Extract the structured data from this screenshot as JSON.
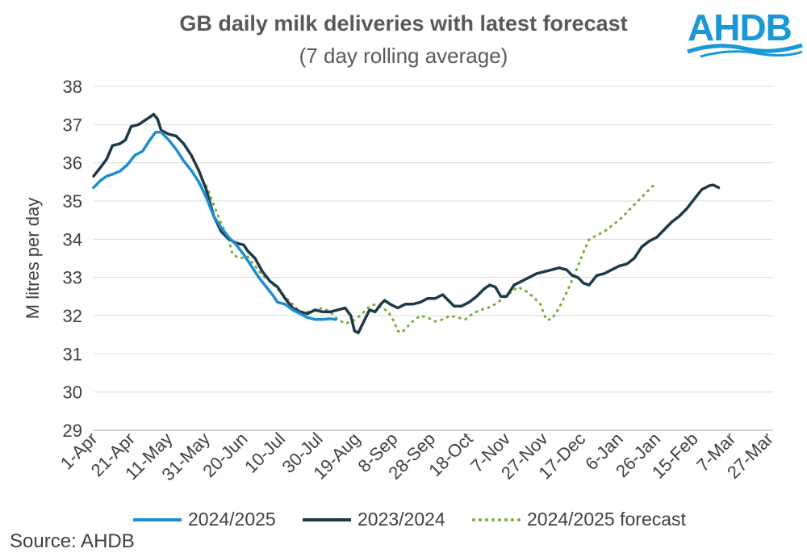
{
  "header": {
    "title": "GB daily milk deliveries with latest forecast",
    "subtitle": "(7 day rolling average)"
  },
  "logo": {
    "text": "AHDB",
    "color": "#1a97d5"
  },
  "footer": {
    "source": "Source: AHDB"
  },
  "chart_data": {
    "type": "line",
    "ylabel": "M litres per day",
    "xlabel": "",
    "ylim": [
      29,
      38
    ],
    "yticks": [
      29,
      30,
      31,
      32,
      33,
      34,
      35,
      36,
      37,
      38
    ],
    "xlim": [
      0,
      362
    ],
    "xticks": [
      {
        "day": 0,
        "label": "1-Apr"
      },
      {
        "day": 20,
        "label": "21-Apr"
      },
      {
        "day": 40,
        "label": "11-May"
      },
      {
        "day": 60,
        "label": "31-May"
      },
      {
        "day": 80,
        "label": "20-Jun"
      },
      {
        "day": 100,
        "label": "10-Jul"
      },
      {
        "day": 120,
        "label": "30-Jul"
      },
      {
        "day": 140,
        "label": "19-Aug"
      },
      {
        "day": 160,
        "label": "8-Sep"
      },
      {
        "day": 180,
        "label": "28-Sep"
      },
      {
        "day": 200,
        "label": "18-Oct"
      },
      {
        "day": 220,
        "label": "7-Nov"
      },
      {
        "day": 240,
        "label": "27-Nov"
      },
      {
        "day": 260,
        "label": "17-Dec"
      },
      {
        "day": 280,
        "label": "6-Jan"
      },
      {
        "day": 300,
        "label": "26-Jan"
      },
      {
        "day": 320,
        "label": "15-Feb"
      },
      {
        "day": 340,
        "label": "7-Mar"
      },
      {
        "day": 360,
        "label": "27-Mar"
      }
    ],
    "grid": "horizontal",
    "legend_position": "bottom",
    "series": [
      {
        "name": "2024/2025",
        "color": "#1b8fd0",
        "style": "solid",
        "points": [
          [
            0,
            35.35
          ],
          [
            4,
            35.55
          ],
          [
            7,
            35.65
          ],
          [
            10,
            35.7
          ],
          [
            14,
            35.78
          ],
          [
            18,
            35.95
          ],
          [
            22,
            36.2
          ],
          [
            26,
            36.3
          ],
          [
            30,
            36.6
          ],
          [
            33,
            36.8
          ],
          [
            36,
            36.8
          ],
          [
            40,
            36.6
          ],
          [
            44,
            36.35
          ],
          [
            48,
            36.05
          ],
          [
            52,
            35.8
          ],
          [
            56,
            35.5
          ],
          [
            60,
            35.1
          ],
          [
            64,
            34.6
          ],
          [
            68,
            34.3
          ],
          [
            72,
            34.05
          ],
          [
            76,
            33.85
          ],
          [
            80,
            33.6
          ],
          [
            84,
            33.3
          ],
          [
            88,
            33.0
          ],
          [
            92,
            32.75
          ],
          [
            96,
            32.5
          ],
          [
            98,
            32.35
          ],
          [
            102,
            32.3
          ],
          [
            106,
            32.15
          ],
          [
            110,
            32.05
          ],
          [
            114,
            31.95
          ],
          [
            118,
            31.9
          ],
          [
            122,
            31.9
          ],
          [
            126,
            31.92
          ],
          [
            129,
            31.9
          ]
        ]
      },
      {
        "name": "2023/2024",
        "color": "#1d3a48",
        "style": "solid",
        "points": [
          [
            0,
            35.65
          ],
          [
            4,
            35.9
          ],
          [
            7,
            36.1
          ],
          [
            10,
            36.45
          ],
          [
            14,
            36.5
          ],
          [
            17,
            36.6
          ],
          [
            20,
            36.95
          ],
          [
            24,
            37.0
          ],
          [
            27,
            37.1
          ],
          [
            30,
            37.2
          ],
          [
            32,
            37.27
          ],
          [
            34,
            37.15
          ],
          [
            36,
            36.85
          ],
          [
            40,
            36.75
          ],
          [
            44,
            36.7
          ],
          [
            48,
            36.5
          ],
          [
            52,
            36.2
          ],
          [
            56,
            35.8
          ],
          [
            60,
            35.3
          ],
          [
            64,
            34.6
          ],
          [
            68,
            34.2
          ],
          [
            72,
            34.0
          ],
          [
            76,
            33.9
          ],
          [
            80,
            33.85
          ],
          [
            82,
            33.7
          ],
          [
            86,
            33.5
          ],
          [
            90,
            33.15
          ],
          [
            94,
            32.9
          ],
          [
            98,
            32.75
          ],
          [
            102,
            32.45
          ],
          [
            106,
            32.2
          ],
          [
            110,
            32.1
          ],
          [
            114,
            32.05
          ],
          [
            118,
            32.15
          ],
          [
            122,
            32.1
          ],
          [
            126,
            32.1
          ],
          [
            130,
            32.15
          ],
          [
            134,
            32.2
          ],
          [
            137,
            32.0
          ],
          [
            139,
            31.6
          ],
          [
            141,
            31.55
          ],
          [
            144,
            31.85
          ],
          [
            147,
            32.15
          ],
          [
            150,
            32.1
          ],
          [
            153,
            32.3
          ],
          [
            155,
            32.4
          ],
          [
            158,
            32.3
          ],
          [
            162,
            32.2
          ],
          [
            166,
            32.3
          ],
          [
            170,
            32.3
          ],
          [
            174,
            32.35
          ],
          [
            178,
            32.45
          ],
          [
            182,
            32.45
          ],
          [
            186,
            32.55
          ],
          [
            189,
            32.4
          ],
          [
            192,
            32.25
          ],
          [
            196,
            32.25
          ],
          [
            200,
            32.35
          ],
          [
            204,
            32.5
          ],
          [
            208,
            32.7
          ],
          [
            211,
            32.8
          ],
          [
            214,
            32.75
          ],
          [
            217,
            32.5
          ],
          [
            220,
            32.5
          ],
          [
            224,
            32.8
          ],
          [
            228,
            32.9
          ],
          [
            232,
            33.0
          ],
          [
            236,
            33.1
          ],
          [
            240,
            33.15
          ],
          [
            244,
            33.2
          ],
          [
            248,
            33.25
          ],
          [
            252,
            33.2
          ],
          [
            255,
            33.05
          ],
          [
            258,
            33.0
          ],
          [
            261,
            32.85
          ],
          [
            264,
            32.8
          ],
          [
            268,
            33.05
          ],
          [
            272,
            33.1
          ],
          [
            276,
            33.2
          ],
          [
            280,
            33.3
          ],
          [
            284,
            33.35
          ],
          [
            288,
            33.5
          ],
          [
            292,
            33.8
          ],
          [
            296,
            33.95
          ],
          [
            300,
            34.05
          ],
          [
            304,
            34.25
          ],
          [
            308,
            34.45
          ],
          [
            312,
            34.6
          ],
          [
            316,
            34.8
          ],
          [
            320,
            35.05
          ],
          [
            324,
            35.3
          ],
          [
            328,
            35.4
          ],
          [
            330,
            35.42
          ],
          [
            333,
            35.35
          ]
        ]
      },
      {
        "name": "2024/2025 forecast",
        "color": "#7aab3a",
        "style": "dotted",
        "points": [
          [
            60,
            35.4
          ],
          [
            64,
            34.9
          ],
          [
            68,
            34.4
          ],
          [
            72,
            34.0
          ],
          [
            74,
            33.6
          ],
          [
            78,
            33.5
          ],
          [
            82,
            33.55
          ],
          [
            86,
            33.3
          ],
          [
            90,
            33.05
          ],
          [
            94,
            32.9
          ],
          [
            98,
            32.7
          ],
          [
            102,
            32.5
          ],
          [
            106,
            32.3
          ],
          [
            110,
            32.1
          ],
          [
            114,
            32.1
          ],
          [
            118,
            32.15
          ],
          [
            122,
            32.2
          ],
          [
            126,
            32.1
          ],
          [
            130,
            31.9
          ],
          [
            134,
            31.8
          ],
          [
            138,
            31.85
          ],
          [
            142,
            32.0
          ],
          [
            146,
            32.2
          ],
          [
            150,
            32.3
          ],
          [
            154,
            32.2
          ],
          [
            157,
            32.1
          ],
          [
            160,
            31.85
          ],
          [
            162,
            31.6
          ],
          [
            164,
            31.55
          ],
          [
            167,
            31.7
          ],
          [
            170,
            31.85
          ],
          [
            174,
            32.0
          ],
          [
            178,
            31.95
          ],
          [
            182,
            31.85
          ],
          [
            186,
            31.9
          ],
          [
            190,
            32.0
          ],
          [
            194,
            31.95
          ],
          [
            198,
            31.9
          ],
          [
            202,
            32.05
          ],
          [
            206,
            32.15
          ],
          [
            210,
            32.2
          ],
          [
            214,
            32.3
          ],
          [
            218,
            32.45
          ],
          [
            222,
            32.6
          ],
          [
            226,
            32.75
          ],
          [
            230,
            32.65
          ],
          [
            234,
            32.5
          ],
          [
            238,
            32.3
          ],
          [
            241,
            31.9
          ],
          [
            244,
            31.9
          ],
          [
            248,
            32.2
          ],
          [
            252,
            32.6
          ],
          [
            256,
            33.05
          ],
          [
            260,
            33.55
          ],
          [
            264,
            34.0
          ],
          [
            268,
            34.1
          ],
          [
            272,
            34.2
          ],
          [
            276,
            34.35
          ],
          [
            280,
            34.5
          ],
          [
            284,
            34.7
          ],
          [
            288,
            34.9
          ],
          [
            292,
            35.1
          ],
          [
            296,
            35.3
          ],
          [
            298,
            35.4
          ]
        ]
      }
    ]
  }
}
